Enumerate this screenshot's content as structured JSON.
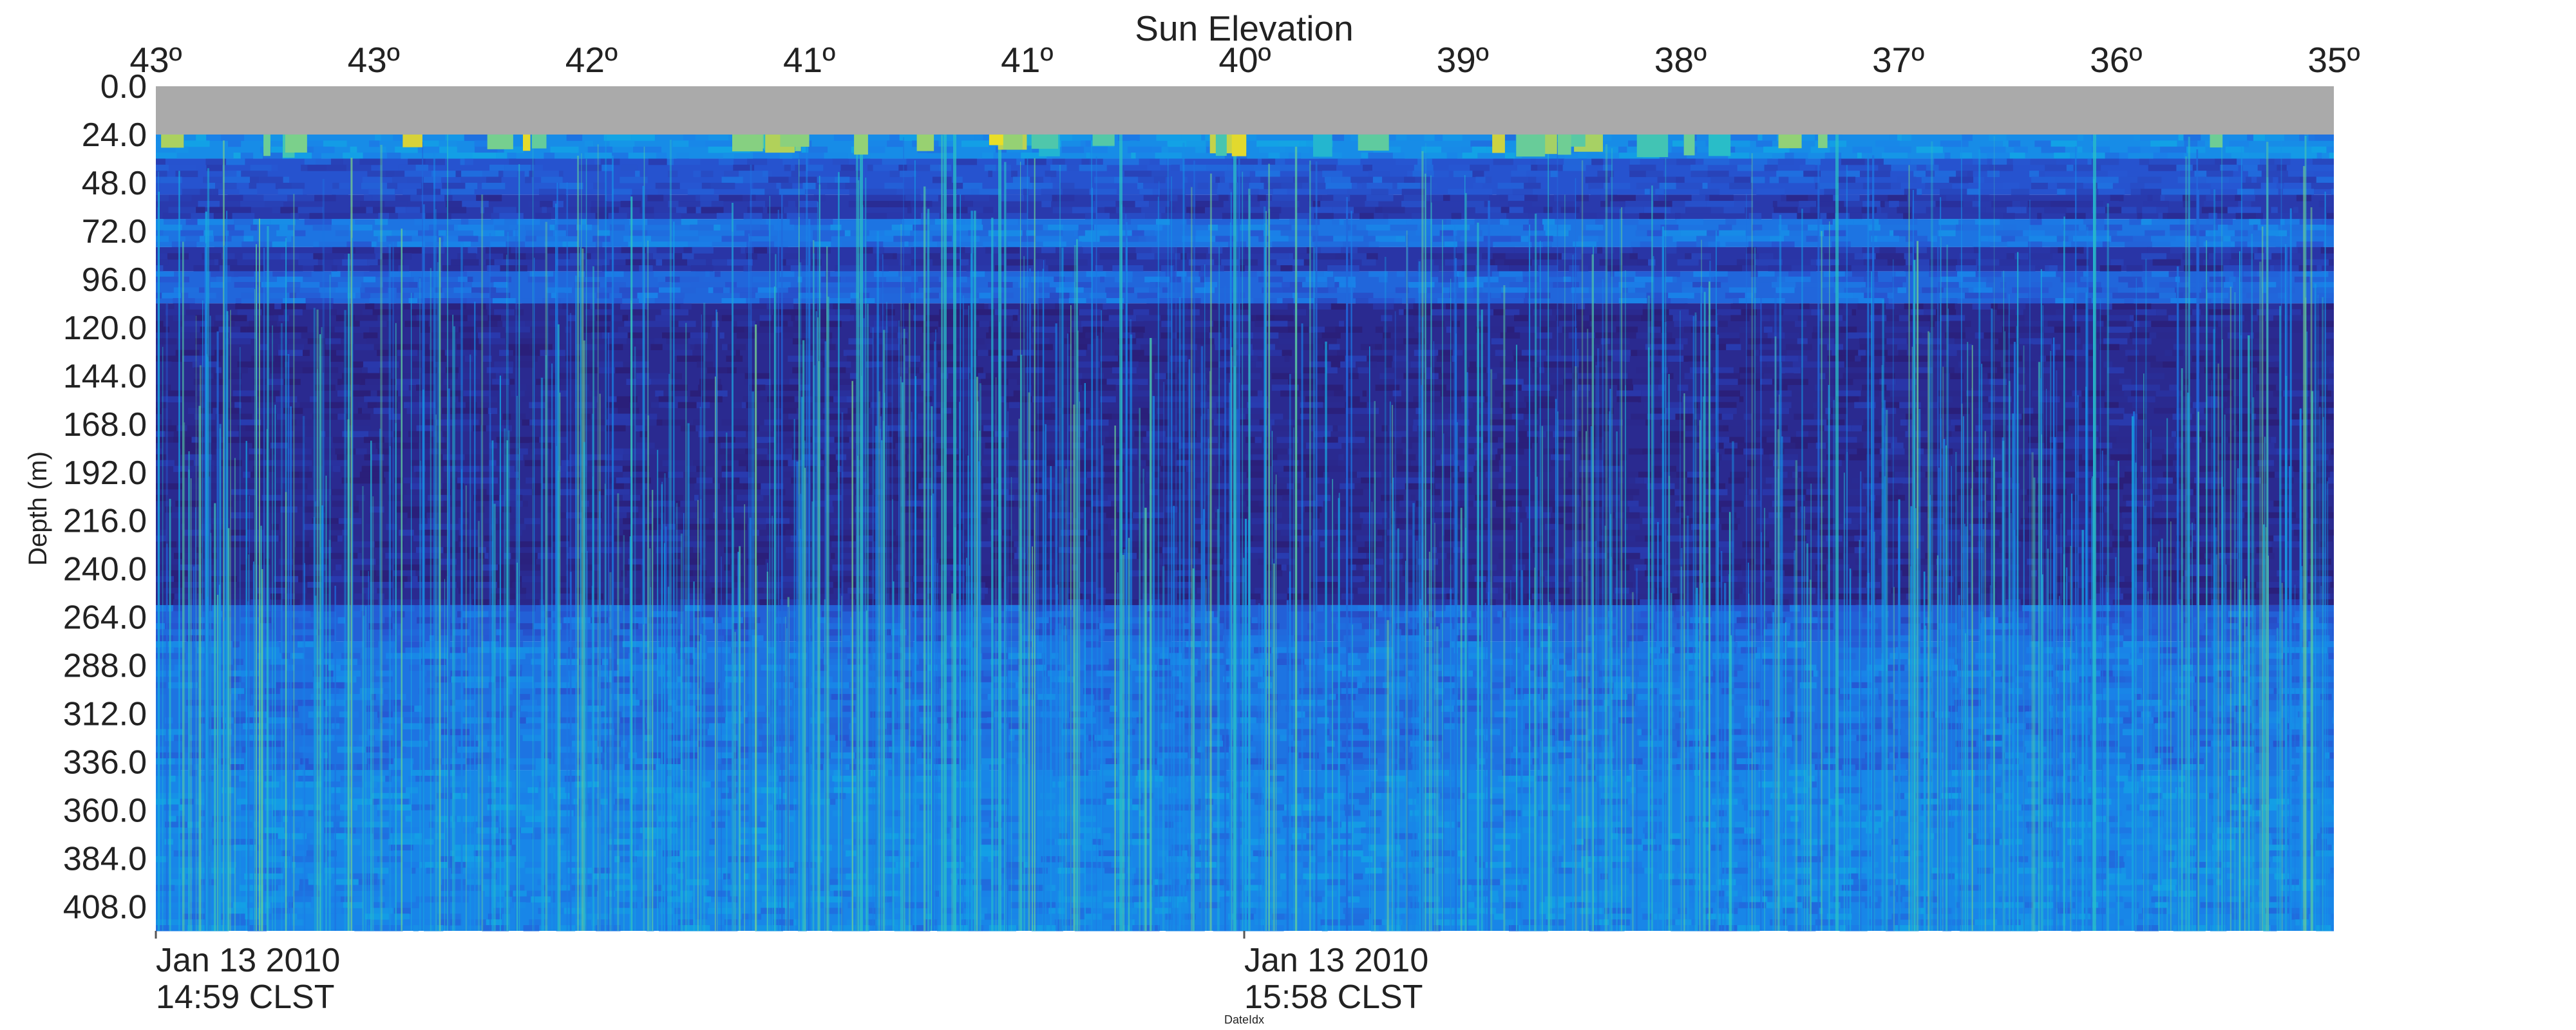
{
  "chart_data": {
    "type": "heatmap",
    "title": "Sun Elevation",
    "ylabel": "Depth (m)",
    "xlabel": "DateIdx",
    "top_ticks": [
      "43º",
      "43º",
      "42º",
      "41º",
      "41º",
      "40º",
      "39º",
      "38º",
      "37º",
      "36º",
      "35º"
    ],
    "depth_ticks": [
      "0.0",
      "24.0",
      "48.0",
      "72.0",
      "96.0",
      "120.0",
      "144.0",
      "168.0",
      "192.0",
      "216.0",
      "240.0",
      "264.0",
      "288.0",
      "312.0",
      "336.0",
      "360.0",
      "384.0",
      "408.0"
    ],
    "depth_range": [
      0,
      420
    ],
    "no_data_depth_range": [
      0,
      24
    ],
    "bottom_ticks": [
      {
        "date": "Jan 13 2010",
        "time": "14:59 CLST"
      },
      {
        "date": "Jan 13 2010",
        "time": "15:58 CLST"
      }
    ],
    "layers": [
      {
        "depth_from": 24,
        "depth_to": 36,
        "level": 0.42
      },
      {
        "depth_from": 36,
        "depth_to": 54,
        "level": 0.24
      },
      {
        "depth_from": 54,
        "depth_to": 66,
        "level": 0.14
      },
      {
        "depth_from": 66,
        "depth_to": 80,
        "level": 0.34
      },
      {
        "depth_from": 80,
        "depth_to": 92,
        "level": 0.12
      },
      {
        "depth_from": 92,
        "depth_to": 108,
        "level": 0.3
      },
      {
        "depth_from": 108,
        "depth_to": 258,
        "level": 0.06
      },
      {
        "depth_from": 258,
        "depth_to": 276,
        "level": 0.28
      },
      {
        "depth_from": 276,
        "depth_to": 340,
        "level": 0.34
      },
      {
        "depth_from": 340,
        "depth_to": 420,
        "level": 0.4
      }
    ],
    "colormap": [
      "#2a1f7a",
      "#2936a8",
      "#2656d2",
      "#1a7fe8",
      "#12a2e6",
      "#2cc0c4",
      "#7ad08c",
      "#d8d238",
      "#f5e61c"
    ],
    "no_data_color": "#aaaaaa",
    "grid": false,
    "legend": "none"
  }
}
